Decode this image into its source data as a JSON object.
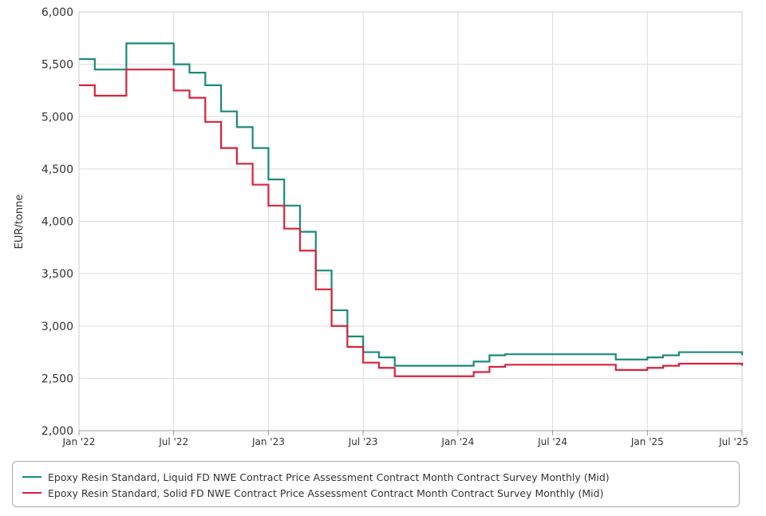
{
  "chart_data": {
    "type": "line",
    "step": true,
    "ylabel": "EUR/tonne",
    "xlabel": "",
    "title": "",
    "ylim": [
      2000,
      6000
    ],
    "yticks": [
      2000,
      2500,
      3000,
      3500,
      4000,
      4500,
      5000,
      5500,
      6000
    ],
    "ytick_labels": [
      "2,000",
      "2,500",
      "3,000",
      "3,500",
      "4,000",
      "4,500",
      "5,000",
      "5,500",
      "6,000"
    ],
    "xlim": [
      "2022-01",
      "2025-07"
    ],
    "xticks": [
      "2022-01",
      "2022-07",
      "2023-01",
      "2023-07",
      "2024-01",
      "2024-07",
      "2025-01",
      "2025-07"
    ],
    "xtick_labels": [
      "Jan '22",
      "Jul '22",
      "Jan '23",
      "Jul '23",
      "Jan '24",
      "Jul '24",
      "Jan '25",
      "Jul '25"
    ],
    "grid": true,
    "legend_position": "bottom",
    "x": [
      "2022-01",
      "2022-02",
      "2022-03",
      "2022-04",
      "2022-05",
      "2022-06",
      "2022-07",
      "2022-08",
      "2022-09",
      "2022-10",
      "2022-11",
      "2022-12",
      "2023-01",
      "2023-02",
      "2023-03",
      "2023-04",
      "2023-05",
      "2023-06",
      "2023-07",
      "2023-08",
      "2023-09",
      "2023-10",
      "2023-11",
      "2023-12",
      "2024-01",
      "2024-02",
      "2024-03",
      "2024-04",
      "2024-05",
      "2024-06",
      "2024-07",
      "2024-08",
      "2024-09",
      "2024-10",
      "2024-11",
      "2024-12",
      "2025-01",
      "2025-02",
      "2025-03",
      "2025-04",
      "2025-05",
      "2025-06",
      "2025-07"
    ],
    "series": [
      {
        "name": "Epoxy Resin Standard, Liquid FD NWE Contract Price Assessment Contract Month Contract Survey Monthly (Mid)",
        "color": "#1a8a7a",
        "values": [
          5550,
          5450,
          5450,
          5700,
          5700,
          5700,
          5500,
          5420,
          5300,
          5050,
          4900,
          4700,
          4400,
          4150,
          3900,
          3530,
          3150,
          2900,
          2750,
          2700,
          2620,
          2620,
          2620,
          2620,
          2620,
          2660,
          2720,
          2730,
          2730,
          2730,
          2730,
          2730,
          2730,
          2730,
          2680,
          2680,
          2700,
          2720,
          2750,
          2750,
          2750,
          2750,
          2720
        ]
      },
      {
        "name": "Epoxy Resin Standard, Solid FD NWE Contract Price Assessment Contract Month Contract Survey Monthly (Mid)",
        "color": "#d9223c",
        "values": [
          5300,
          5200,
          5200,
          5450,
          5450,
          5450,
          5250,
          5180,
          4950,
          4700,
          4550,
          4350,
          4150,
          3930,
          3720,
          3350,
          3000,
          2800,
          2650,
          2600,
          2520,
          2520,
          2520,
          2520,
          2520,
          2560,
          2610,
          2630,
          2630,
          2630,
          2630,
          2630,
          2630,
          2630,
          2580,
          2580,
          2600,
          2620,
          2640,
          2640,
          2640,
          2640,
          2620
        ]
      }
    ]
  }
}
